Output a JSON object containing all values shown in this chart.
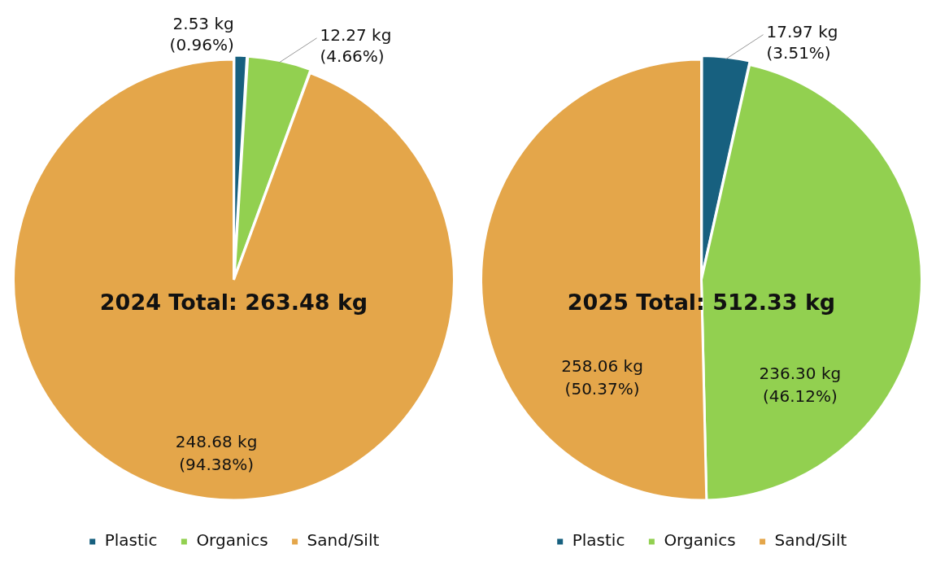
{
  "chart_data": [
    {
      "type": "pie",
      "categories": [
        "Plastic",
        "Organics",
        "Sand/Silt"
      ],
      "values": [
        2.53,
        12.27,
        248.68
      ],
      "colors": [
        "#17607f",
        "#92d050",
        "#e4a64a"
      ],
      "value_labels": [
        "2.53 kg\n(0.96%)",
        "12.27 kg\n(4.66%)",
        "248.68 kg\n(94.38%)"
      ],
      "annotations": [
        "2024 Total: 263.48 kg"
      ],
      "legend": "bottom"
    },
    {
      "type": "pie",
      "categories": [
        "Plastic",
        "Organics",
        "Sand/Silt"
      ],
      "values": [
        17.97,
        236.3,
        258.06
      ],
      "colors": [
        "#17607f",
        "#92d050",
        "#e4a64a"
      ],
      "value_labels": [
        "17.97 kg\n(3.51%)",
        "236.30 kg\n(46.12%)",
        "258.06 kg\n(50.37%)"
      ],
      "annotations": [
        "2025 Total: 512.33 kg"
      ],
      "legend": "bottom"
    }
  ]
}
